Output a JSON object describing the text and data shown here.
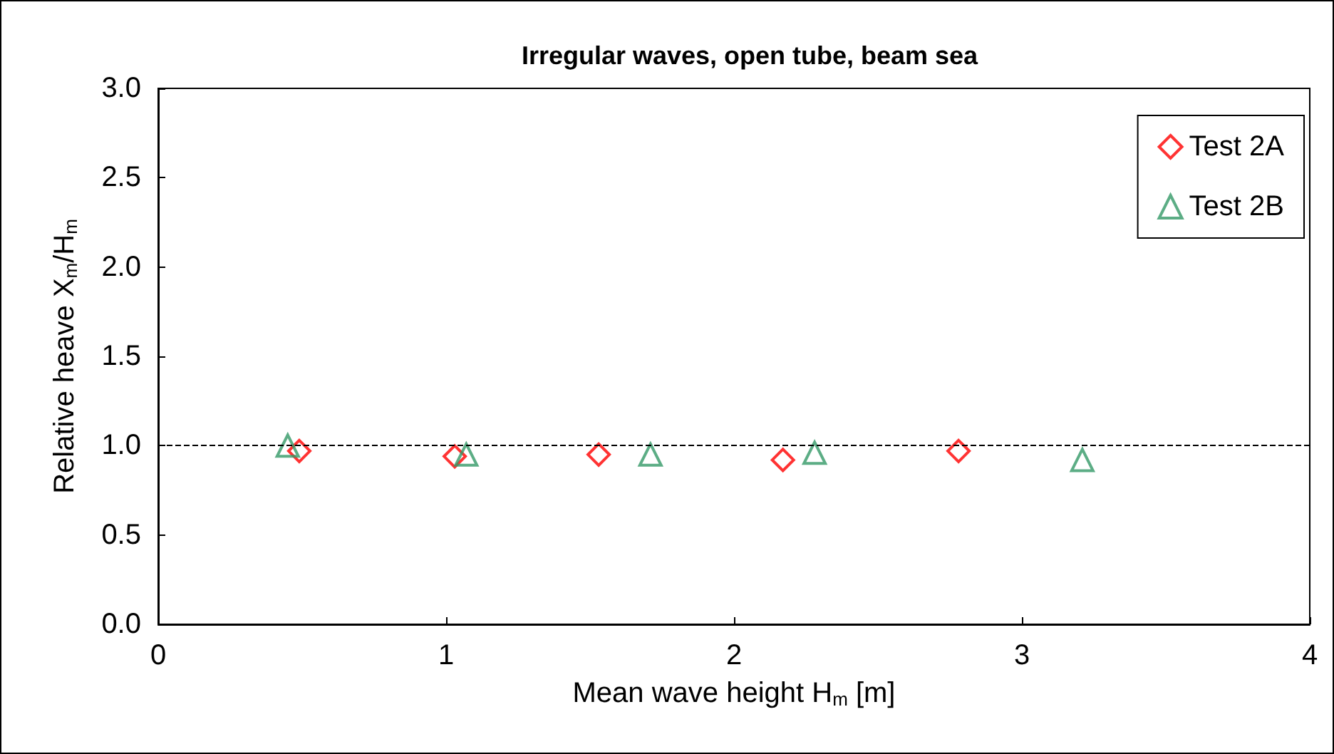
{
  "chart_data": {
    "type": "scatter",
    "title": "Irregular waves, open tube, beam sea",
    "xlabel": "Mean wave height H$_{m}$ [m]",
    "ylabel": "Relative heave X$_{m}$/H$_{m}$",
    "series": [
      {
        "name": "Test 2A",
        "color": "#ff0000",
        "marker": "diamond",
        "x": [
          0.49,
          1.03,
          1.53,
          2.17,
          2.78
        ],
        "values": [
          0.97,
          0.94,
          0.95,
          0.92,
          0.97
        ]
      },
      {
        "name": "Test 2B",
        "color": "#339966",
        "marker": "triangle",
        "x": [
          0.45,
          1.07,
          1.71,
          2.28,
          3.21
        ],
        "values": [
          1.0,
          0.95,
          0.95,
          0.96,
          0.92
        ]
      }
    ],
    "xlim": [
      0,
      4
    ],
    "xticks": [
      0,
      1,
      2,
      3,
      4
    ],
    "ylim": [
      0,
      3
    ],
    "yticks": [
      {
        "value": 0,
        "label": "0.0"
      },
      {
        "value": 0.5,
        "label": "0.5"
      },
      {
        "value": 1,
        "label": "1.0"
      },
      {
        "value": 1.5,
        "label": "1.5"
      },
      {
        "value": 2,
        "label": "2.0"
      },
      {
        "value": 2.5,
        "label": "2.5"
      },
      {
        "value": 3,
        "label": "3.0"
      }
    ],
    "ref_lines": [
      {
        "axis": "y",
        "value": 1,
        "label": null,
        "color": "#000000",
        "line_style": "dashed"
      }
    ],
    "grid": false,
    "legend": "top right"
  }
}
